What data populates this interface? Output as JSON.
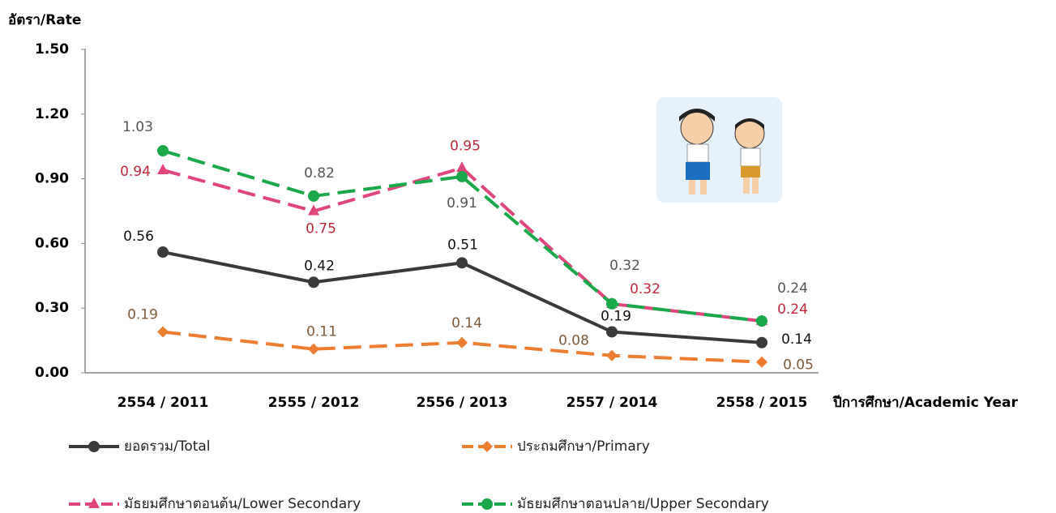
{
  "chart_data": {
    "type": "line",
    "y_label": "อัตรา/Rate",
    "x_label": "ปีการศึกษา/Academic Year",
    "categories": [
      "2554 / 2011",
      "2555 / 2012",
      "2556 / 2013",
      "2557 / 2014",
      "2558 / 2015"
    ],
    "ylim": [
      0,
      1.5
    ],
    "yticks": [
      {
        "value": 0,
        "label": "0.00"
      },
      {
        "value": 0.3,
        "label": "0.30"
      },
      {
        "value": 0.6,
        "label": "0.60"
      },
      {
        "value": 0.9,
        "label": "0.90"
      },
      {
        "value": 1.2,
        "label": "1.20"
      },
      {
        "value": 1.5,
        "label": "1.50"
      }
    ],
    "grid": false,
    "series": [
      {
        "name": "ยอดรวม/Total",
        "color": "#3a3a3a",
        "label_color": "#111111",
        "marker": "circle",
        "dashed": false,
        "values": [
          0.56,
          0.42,
          0.51,
          0.19,
          0.14
        ]
      },
      {
        "name": "ประถมศึกษา/Primary",
        "color": "#ed7d31",
        "label_color": "#7f5a3a",
        "marker": "diamond",
        "dashed": true,
        "values": [
          0.19,
          0.11,
          0.14,
          0.08,
          0.05
        ]
      },
      {
        "name": "มัธยมศึกษาตอนต้น/Lower Secondary",
        "color": "#e0457b",
        "label_color": "#c0283c",
        "marker": "triangle",
        "dashed": true,
        "values": [
          0.94,
          0.75,
          0.95,
          0.32,
          0.24
        ]
      },
      {
        "name": "มัธยมศึกษาตอนปลาย/Upper Secondary",
        "color": "#1aa84a",
        "label_color": "#555555",
        "marker": "circle",
        "dashed": true,
        "values": [
          1.03,
          0.82,
          0.91,
          0.32,
          0.24
        ]
      }
    ]
  }
}
